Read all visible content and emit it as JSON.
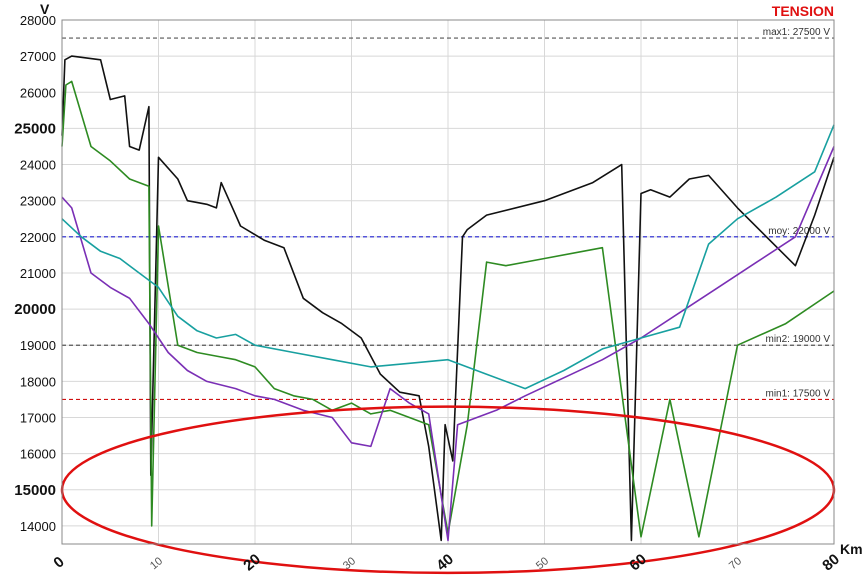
{
  "chart_data": {
    "type": "line",
    "title": "TENSION",
    "ylabel": "V",
    "xlabel": "Km",
    "xlim": [
      0,
      80
    ],
    "ylim": [
      13500,
      28000
    ],
    "x_ticks": [
      {
        "value": 0,
        "label": "0",
        "major": true
      },
      {
        "value": 10,
        "label": "10",
        "major": false
      },
      {
        "value": 20,
        "label": "20",
        "major": true
      },
      {
        "value": 30,
        "label": "30",
        "major": false
      },
      {
        "value": 40,
        "label": "40",
        "major": true
      },
      {
        "value": 50,
        "label": "50",
        "major": false
      },
      {
        "value": 60,
        "label": "60",
        "major": true
      },
      {
        "value": 70,
        "label": "70",
        "major": false
      },
      {
        "value": 80,
        "label": "80",
        "major": true
      }
    ],
    "y_ticks": [
      {
        "value": 14000,
        "label": "14000",
        "major": false
      },
      {
        "value": 15000,
        "label": "15000",
        "major": true
      },
      {
        "value": 16000,
        "label": "16000",
        "major": false
      },
      {
        "value": 17000,
        "label": "17000",
        "major": false
      },
      {
        "value": 18000,
        "label": "18000",
        "major": false
      },
      {
        "value": 19000,
        "label": "19000",
        "major": false
      },
      {
        "value": 20000,
        "label": "20000",
        "major": true
      },
      {
        "value": 21000,
        "label": "21000",
        "major": false
      },
      {
        "value": 22000,
        "label": "22000",
        "major": false
      },
      {
        "value": 23000,
        "label": "23000",
        "major": false
      },
      {
        "value": 24000,
        "label": "24000",
        "major": false
      },
      {
        "value": 25000,
        "label": "25000",
        "major": true
      },
      {
        "value": 26000,
        "label": "26000",
        "major": false
      },
      {
        "value": 27000,
        "label": "27000",
        "major": false
      },
      {
        "value": 28000,
        "label": "28000",
        "major": false
      }
    ],
    "grid": true,
    "reference_lines": [
      {
        "label": "max1: 27500 V",
        "value": 27500,
        "color": "#555555"
      },
      {
        "label": "moy: 22000 V",
        "value": 22000,
        "color": "#2020d0"
      },
      {
        "label": "min2: 19000 V",
        "value": 19000,
        "color": "#555555"
      },
      {
        "label": "min1: 17500 V",
        "value": 17500,
        "color": "#d01010"
      }
    ],
    "annotation": {
      "shape": "ellipse",
      "color": "#e01010",
      "center": [
        40,
        15000
      ],
      "radius_x": 40,
      "radius_y": 2300
    },
    "series": [
      {
        "color": "#111111",
        "x": [
          0,
          0.3,
          1,
          4,
          5,
          6.5,
          7,
          8,
          9,
          9.2,
          10,
          12,
          13,
          15,
          16,
          16.5,
          18,
          18.5,
          21,
          23,
          25,
          27,
          29,
          31,
          33,
          35,
          37,
          38,
          39.3,
          39.7,
          40.5,
          41.5,
          42,
          44,
          50,
          55,
          58,
          59,
          60,
          61,
          63,
          65,
          67,
          70,
          73,
          76,
          78,
          80
        ],
        "y": [
          24800,
          26900,
          27000,
          26900,
          25800,
          25900,
          24500,
          24400,
          25600,
          15400,
          24200,
          23600,
          23000,
          22900,
          22800,
          23500,
          22600,
          22300,
          21900,
          21700,
          20300,
          19900,
          19600,
          19200,
          18200,
          17700,
          17600,
          16200,
          13600,
          16800,
          15800,
          22000,
          22200,
          22600,
          23000,
          23500,
          24000,
          13600,
          23200,
          23300,
          23100,
          23600,
          23700,
          22800,
          22000,
          21200,
          22600,
          24200
        ]
      },
      {
        "color": "#2e8b22",
        "x": [
          0,
          0.4,
          1,
          3,
          5,
          7,
          9,
          9.3,
          10,
          12,
          14,
          16,
          18,
          20,
          22,
          24,
          26,
          28,
          30,
          32,
          34,
          36,
          38,
          40,
          42,
          44,
          46,
          50,
          56,
          60,
          63,
          66,
          70,
          75,
          80
        ],
        "y": [
          24500,
          26200,
          26300,
          24500,
          24100,
          23600,
          23400,
          14000,
          22300,
          19000,
          18800,
          18700,
          18600,
          18400,
          17800,
          17600,
          17500,
          17200,
          17400,
          17100,
          17200,
          17000,
          16800,
          13800,
          16800,
          21300,
          21200,
          21400,
          21700,
          13700,
          17500,
          13700,
          19000,
          19600,
          20500
        ]
      },
      {
        "color": "#7a2fb5",
        "x": [
          0,
          1,
          3,
          5,
          7,
          9,
          11,
          13,
          15,
          18,
          20,
          22,
          25,
          28,
          30,
          32,
          34,
          36,
          38,
          40,
          41,
          43,
          45,
          48,
          52,
          56,
          60,
          64,
          68,
          72,
          76,
          80
        ],
        "y": [
          23100,
          22800,
          21000,
          20600,
          20300,
          19600,
          18800,
          18300,
          18000,
          17800,
          17600,
          17500,
          17200,
          17000,
          16300,
          16200,
          17800,
          17400,
          17100,
          13600,
          16800,
          17000,
          17200,
          17600,
          18100,
          18600,
          19200,
          19900,
          20600,
          21300,
          22000,
          24500
        ]
      },
      {
        "color": "#18a0a0",
        "x": [
          0,
          2,
          4,
          6,
          8,
          10,
          12,
          14,
          16,
          18,
          20,
          24,
          28,
          32,
          36,
          40,
          44,
          48,
          52,
          56,
          60,
          64,
          67,
          70,
          74,
          78,
          80
        ],
        "y": [
          22500,
          22000,
          21600,
          21400,
          21000,
          20600,
          19800,
          19400,
          19200,
          19300,
          19000,
          18800,
          18600,
          18400,
          18500,
          18600,
          18200,
          17800,
          18300,
          18900,
          19200,
          19500,
          21800,
          22500,
          23100,
          23800,
          25100
        ]
      }
    ]
  }
}
